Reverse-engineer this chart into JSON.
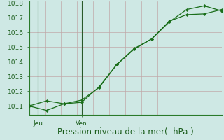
{
  "line1_x": [
    0,
    1,
    2,
    3,
    4,
    5,
    6,
    7,
    8,
    9,
    10,
    11
  ],
  "line1_y": [
    1011.0,
    1011.35,
    1011.15,
    1011.25,
    1012.3,
    1013.8,
    1014.85,
    1015.55,
    1016.75,
    1017.2,
    1017.25,
    1017.55
  ],
  "line2_x": [
    0,
    1,
    2,
    3,
    4,
    5,
    6,
    7,
    8,
    9,
    10,
    11
  ],
  "line2_y": [
    1011.0,
    1010.7,
    1011.15,
    1011.4,
    1012.25,
    1013.8,
    1014.9,
    1015.55,
    1016.7,
    1017.55,
    1017.8,
    1017.45
  ],
  "line_color": "#1a6e1a",
  "marker": "D",
  "marker_size": 2.5,
  "ylim": [
    1010.4,
    1018.1
  ],
  "yticks": [
    1011,
    1012,
    1013,
    1014,
    1015,
    1016,
    1017,
    1018
  ],
  "xlim": [
    0,
    11
  ],
  "jeu_x": 0.5,
  "ven_x": 3.0,
  "n_vgrid": 12,
  "bg_color": "#cee8e4",
  "grid_color": "#c0a8a8",
  "xlabel": "Pression niveau de la mer(  hPa )",
  "xlabel_color": "#1a5c1a",
  "xlabel_fontsize": 8.5,
  "tick_color": "#1a5c1a",
  "tick_fontsize": 6.5,
  "spine_color": "#2a7a2a",
  "vline_color": "#2a5a2a"
}
